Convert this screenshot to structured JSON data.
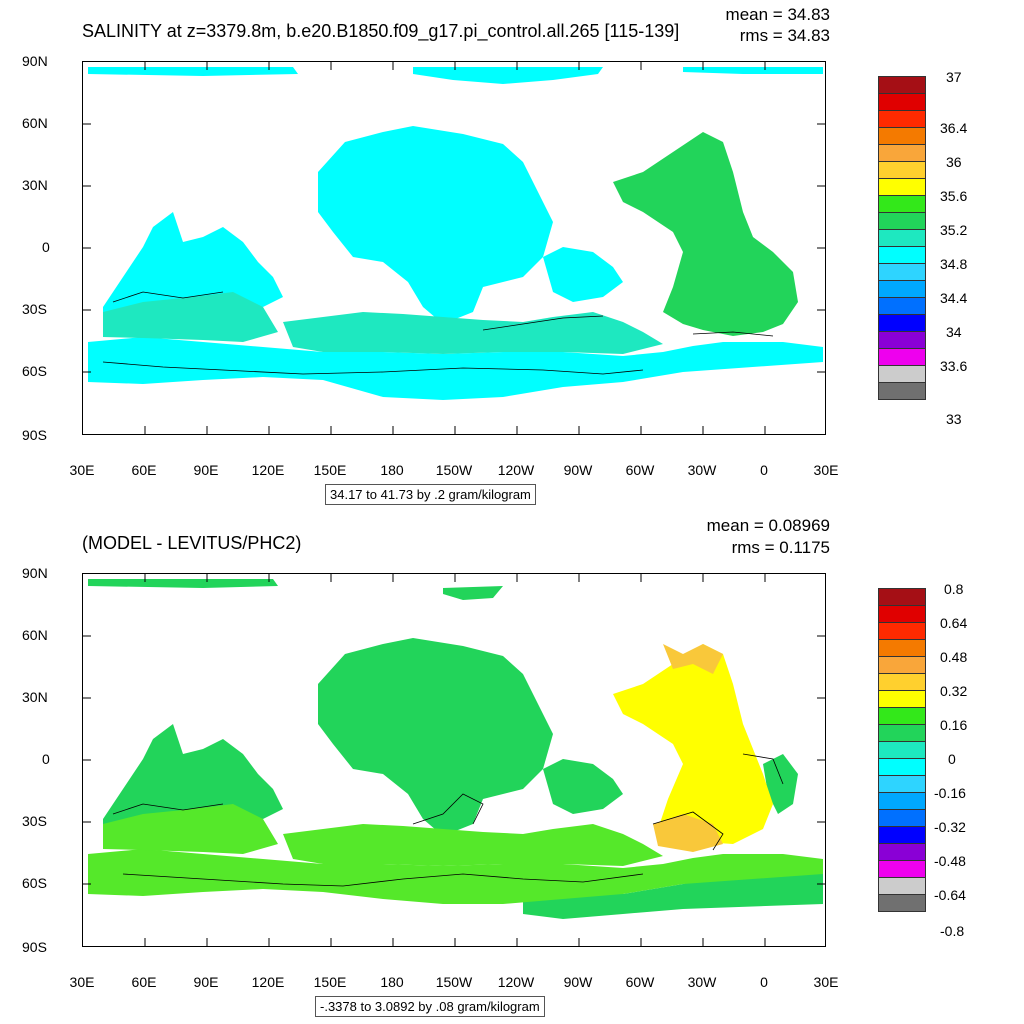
{
  "panels": [
    {
      "title": "SALINITY at z=3379.8m, b.e20.B1850.f09_g17.pi_control.all.265 [115-139]",
      "mean_text": "mean = 34.83",
      "rms_text": "rms = 34.83",
      "range_text": "34.17 to 41.73 by .2 gram/kilogram",
      "colorbar_labels": [
        "37",
        "36.4",
        "36",
        "35.6",
        "35.2",
        "34.8",
        "34.4",
        "34",
        "33.6",
        "33"
      ],
      "colors": [
        "#a50f15",
        "#e00000",
        "#ff2a00",
        "#f47a00",
        "#f9a63a",
        "#ffd02e",
        "#ffff00",
        "#33e81a",
        "#22d45a",
        "#1ee8c0",
        "#00ffff",
        "#2ed4ff",
        "#00a8ff",
        "#0070ff",
        "#0000ff",
        "#8a00d6",
        "#ee00ee",
        "#cccccc",
        "#707070"
      ],
      "fill_colors": {
        "main": "#00ffff",
        "south": "#1ee8c0",
        "atlantic": "#22d45a"
      }
    },
    {
      "title": "(MODEL - LEVITUS/PHC2)",
      "mean_text": "mean = 0.08969",
      "rms_text": "rms = 0.1175",
      "range_text": "-.3378 to 3.0892 by .08 gram/kilogram",
      "colorbar_labels": [
        "0.8",
        "0.64",
        "0.48",
        "0.32",
        "0.16",
        "0",
        "-0.16",
        "-0.32",
        "-0.48",
        "-0.64",
        "-0.8"
      ],
      "colors": [
        "#a50f15",
        "#e00000",
        "#ff2a00",
        "#f47a00",
        "#f9a63a",
        "#ffd02e",
        "#ffff00",
        "#33e81a",
        "#22d45a",
        "#1ee8c0",
        "#00ffff",
        "#2ed4ff",
        "#00a8ff",
        "#0070ff",
        "#0000ff",
        "#8a00d6",
        "#ee00ee",
        "#cccccc",
        "#707070"
      ],
      "fill_colors": {
        "main": "#22d45a",
        "south": "#55e82a",
        "atlantic": "#ffff00"
      }
    }
  ],
  "axes": {
    "lat_labels": [
      "90N",
      "60N",
      "30N",
      "0",
      "30S",
      "60S",
      "90S"
    ],
    "lon_labels": [
      "30E",
      "60E",
      "90E",
      "120E",
      "150E",
      "180",
      "150W",
      "120W",
      "90W",
      "60W",
      "30W",
      "0",
      "30E"
    ]
  }
}
